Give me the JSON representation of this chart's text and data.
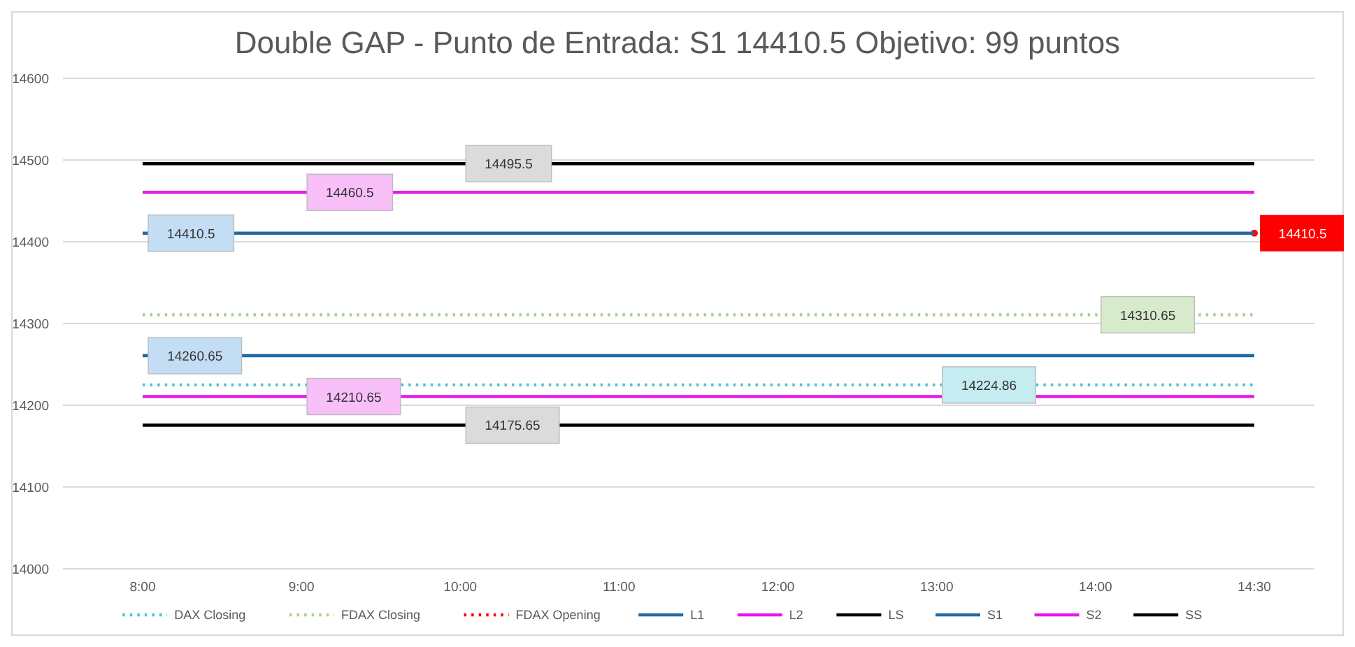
{
  "chart_data": {
    "type": "line",
    "title": "Double GAP - Punto de Entrada: S1 14410.5 Objetivo: 99 puntos",
    "categories": [
      "8:00",
      "9:00",
      "10:00",
      "11:00",
      "12:00",
      "13:00",
      "14:00",
      "14:30"
    ],
    "ylim": [
      14000,
      14600
    ],
    "yticks": [
      14000,
      14100,
      14200,
      14300,
      14400,
      14500,
      14600
    ],
    "grid": "y",
    "legend": "bottom",
    "marker": "none",
    "series": [
      {
        "name": "DAX Closing",
        "color": "#4bc6d4",
        "line_style": "dotted",
        "values": [
          14224.86,
          14224.86,
          14224.86,
          14224.86,
          14224.86,
          14224.86,
          14224.86,
          14224.86
        ],
        "value_labels": [
          null,
          null,
          null,
          null,
          null,
          "14224.86",
          null,
          null
        ]
      },
      {
        "name": "FDAX Closing",
        "color": "#a9d18e",
        "line_style": "dotted",
        "values": [
          14310.65,
          14310.65,
          14310.65,
          14310.65,
          14310.65,
          14310.65,
          14310.65,
          14310.65
        ],
        "value_labels": [
          null,
          null,
          null,
          null,
          null,
          null,
          "14310.65",
          null
        ]
      },
      {
        "name": "FDAX Opening",
        "color": "#ff0000",
        "line_style": "dotted",
        "marker": "circle",
        "values": [
          null,
          null,
          null,
          null,
          null,
          null,
          null,
          14410.5
        ],
        "value_labels": [
          null,
          null,
          null,
          null,
          null,
          null,
          null,
          "14410.5"
        ]
      },
      {
        "name": "L1",
        "color": "#1f6aa5",
        "line_style": "solid",
        "values": [
          14410.5,
          14410.5,
          14410.5,
          14410.5,
          14410.5,
          14410.5,
          14410.5,
          14410.5
        ],
        "value_labels": [
          "14410.5",
          null,
          null,
          null,
          null,
          null,
          null,
          null
        ]
      },
      {
        "name": "L2",
        "color": "#e619e6",
        "line_style": "solid",
        "values": [
          14460.5,
          14460.5,
          14460.5,
          14460.5,
          14460.5,
          14460.5,
          14460.5,
          14460.5
        ],
        "value_labels": [
          null,
          "14460.5",
          null,
          null,
          null,
          null,
          null,
          null
        ]
      },
      {
        "name": "LS",
        "color": "#000000",
        "line_style": "solid",
        "values": [
          14495.5,
          14495.5,
          14495.5,
          14495.5,
          14495.5,
          14495.5,
          14495.5,
          14495.5
        ],
        "value_labels": [
          null,
          null,
          "14495.5",
          null,
          null,
          null,
          null,
          null
        ]
      },
      {
        "name": "S1",
        "color": "#1f6aa5",
        "line_style": "solid",
        "values": [
          14260.65,
          14260.65,
          14260.65,
          14260.65,
          14260.65,
          14260.65,
          14260.65,
          14260.65
        ],
        "value_labels": [
          "14260.65",
          null,
          null,
          null,
          null,
          null,
          null,
          null
        ]
      },
      {
        "name": "S2",
        "color": "#e619e6",
        "line_style": "solid",
        "values": [
          14210.65,
          14210.65,
          14210.65,
          14210.65,
          14210.65,
          14210.65,
          14210.65,
          14210.65
        ],
        "value_labels": [
          null,
          "14210.65",
          null,
          null,
          null,
          null,
          null,
          null
        ]
      },
      {
        "name": "SS",
        "color": "#000000",
        "line_style": "solid",
        "values": [
          14175.65,
          14175.65,
          14175.65,
          14175.65,
          14175.65,
          14175.65,
          14175.65,
          14175.65
        ],
        "value_labels": [
          null,
          null,
          "14175.65",
          null,
          null,
          null,
          null,
          null
        ]
      }
    ]
  }
}
